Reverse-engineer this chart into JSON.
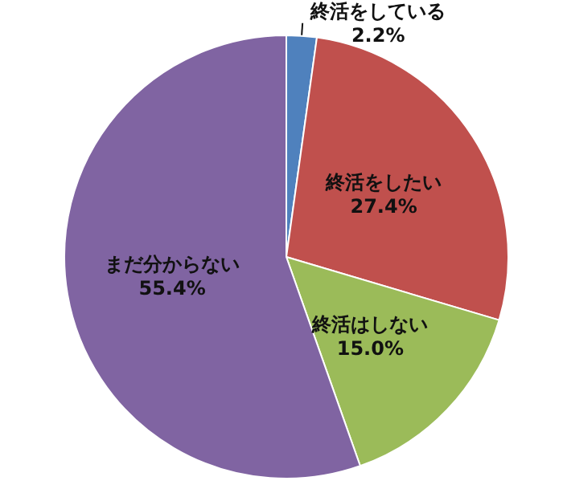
{
  "chart_data": {
    "type": "pie",
    "categories": [
      "終活をしている",
      "終活をしたい",
      "終活はしない",
      "まだ分からない"
    ],
    "values": [
      2.2,
      27.4,
      15.0,
      55.4
    ],
    "colors": [
      "#4f81bd",
      "#c0504d",
      "#9bbb59",
      "#8064a2"
    ],
    "value_labels": [
      "2.2%",
      "27.4%",
      "15.0%",
      "55.4%"
    ],
    "legend": false
  }
}
